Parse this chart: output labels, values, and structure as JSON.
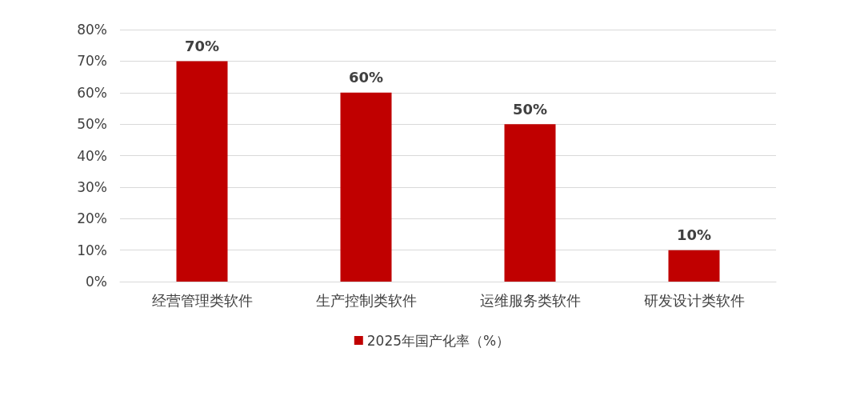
{
  "chart_data": {
    "type": "bar",
    "categories": [
      "经营管理类软件",
      "生产控制类软件",
      "运维服务类软件",
      "研发设计类软件"
    ],
    "series": [
      {
        "name": "2025年国产化率（%）",
        "color": "#c00000",
        "values": [
          70,
          60,
          50,
          10
        ],
        "value_labels": [
          "70%",
          "60%",
          "50%",
          "10%"
        ]
      }
    ],
    "ylim": [
      0,
      80
    ],
    "yticks": [
      {
        "value": 0,
        "label": "0%"
      },
      {
        "value": 10,
        "label": "10%"
      },
      {
        "value": 20,
        "label": "20%"
      },
      {
        "value": 30,
        "label": "30%"
      },
      {
        "value": 40,
        "label": "40%"
      },
      {
        "value": 50,
        "label": "50%"
      },
      {
        "value": 60,
        "label": "60%"
      },
      {
        "value": 70,
        "label": "70%"
      },
      {
        "value": 80,
        "label": "80%"
      }
    ],
    "grid": "y",
    "legend": "bottom"
  }
}
